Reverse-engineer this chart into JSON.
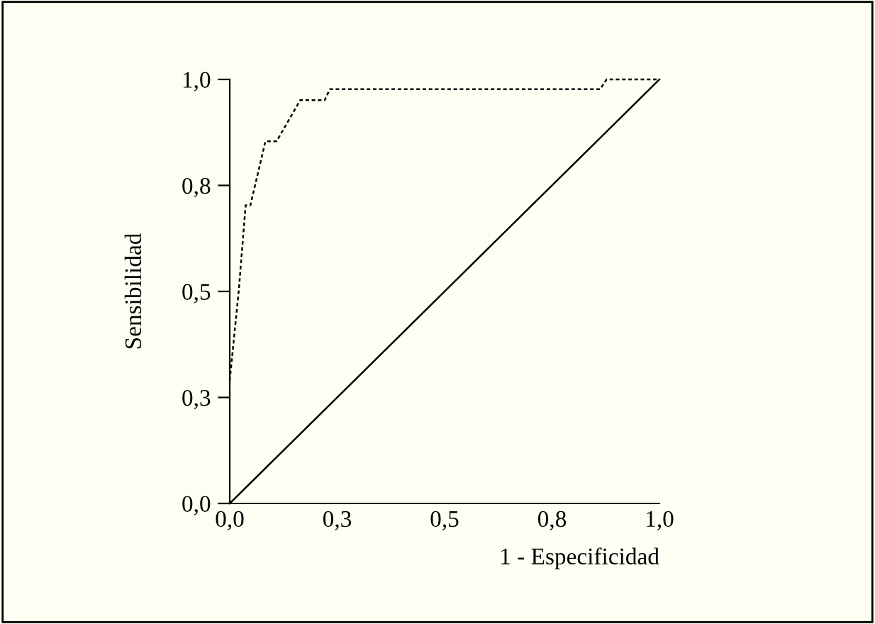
{
  "chart_data": {
    "type": "line",
    "xlabel": "1 - Especificidad",
    "ylabel": "Sensibilidad",
    "series": [
      {
        "color": "#000000",
        "line_style": "dotted",
        "x": [
          0,
          0.021,
          0.037,
          0.048,
          0.083,
          0.109,
          0.164,
          0.221,
          0.233,
          0.862,
          0.877,
          1.0
        ],
        "values": [
          0.29,
          0.502,
          0.703,
          0.703,
          0.854,
          0.854,
          0.951,
          0.951,
          0.977,
          0.977,
          1.0,
          1.0
        ]
      },
      {
        "color": "#000000",
        "line_style": "solid",
        "x": [
          0,
          1
        ],
        "values": [
          0,
          1
        ]
      }
    ],
    "xlim": [
      0,
      1
    ],
    "ylim": [
      0,
      1
    ],
    "xticks": [
      {
        "value": 0,
        "label": "0,0"
      },
      {
        "value": 0.25,
        "label": "0,3"
      },
      {
        "value": 0.5,
        "label": "0,5"
      },
      {
        "value": 0.75,
        "label": "0,8"
      },
      {
        "value": 1,
        "label": "1,0"
      }
    ],
    "yticks": [
      {
        "value": 0,
        "label": "0,0"
      },
      {
        "value": 0.25,
        "label": "0,3"
      },
      {
        "value": 0.5,
        "label": "0,5"
      },
      {
        "value": 0.75,
        "label": "0,8"
      },
      {
        "value": 1,
        "label": "1,0"
      }
    ],
    "grid": false,
    "legend": false
  }
}
